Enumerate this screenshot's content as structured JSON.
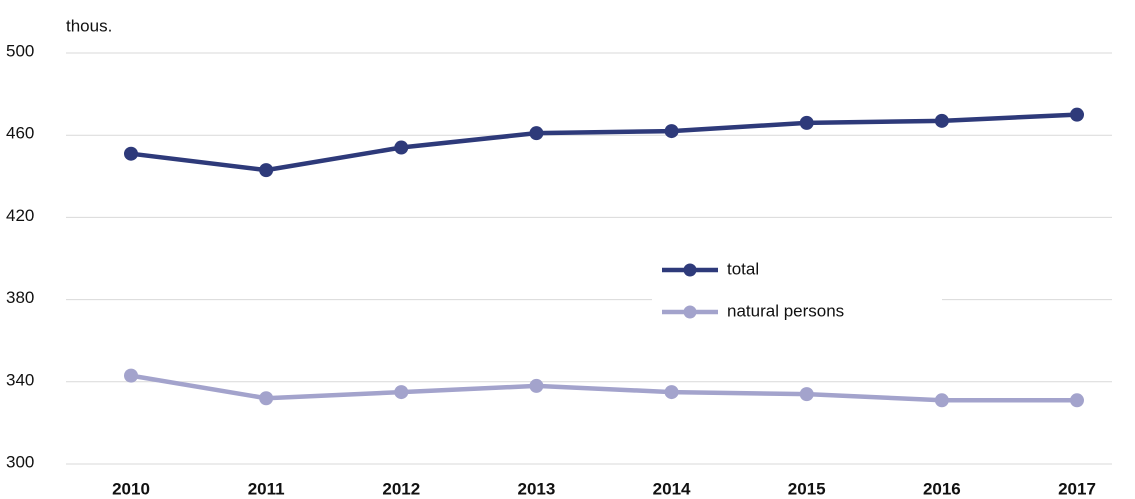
{
  "chart_data": {
    "type": "line",
    "y_label": "thous.",
    "categories": [
      "2010",
      "2011",
      "2012",
      "2013",
      "2014",
      "2015",
      "2016",
      "2017"
    ],
    "series": [
      {
        "name": "total",
        "color": "#2e3a7a",
        "values": [
          451,
          443,
          454,
          461,
          462,
          466,
          467,
          470
        ]
      },
      {
        "name": "natural persons",
        "color": "#a3a3cc",
        "values": [
          343,
          332,
          335,
          338,
          335,
          334,
          331,
          331
        ]
      }
    ],
    "ylim": [
      300,
      500
    ],
    "yticks": [
      300,
      340,
      380,
      420,
      460,
      500
    ],
    "grid": true,
    "legend": "center right"
  }
}
